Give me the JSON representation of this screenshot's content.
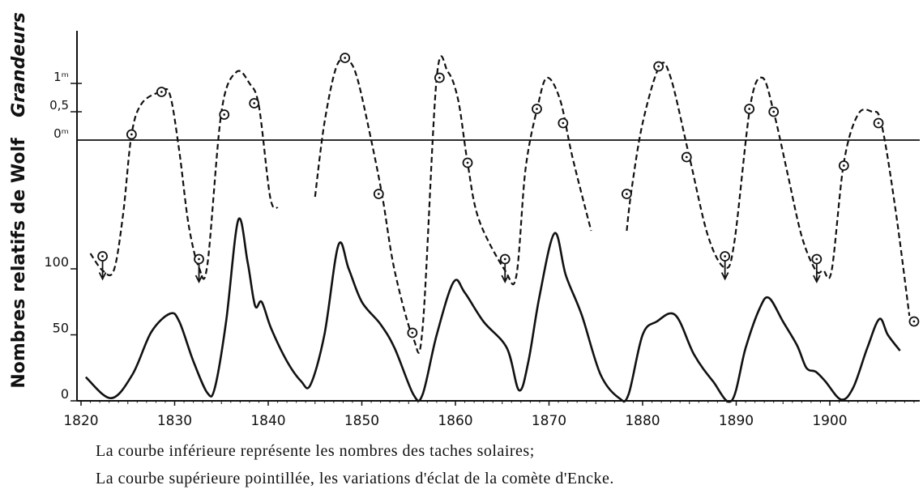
{
  "chart_data": {
    "type": "line",
    "xlim": [
      1813,
      1912
    ],
    "x_ticks": [
      "1820",
      "1830",
      "1840",
      "1850",
      "1860",
      "1870",
      "1880",
      "1890",
      "1900"
    ],
    "lower": {
      "ylabel": "Nombres relatifs de Wolf",
      "ylim": [
        0,
        140
      ],
      "y_ticks": [
        {
          "value": 0,
          "label": "0"
        },
        {
          "value": 50,
          "label": "50"
        },
        {
          "value": 100,
          "label": "100"
        }
      ],
      "series": [
        {
          "style": "solid",
          "points": [
            [
              1820.5,
              18
            ],
            [
              1823.2,
              2
            ],
            [
              1825.5,
              20
            ],
            [
              1827.5,
              52
            ],
            [
              1829.5,
              66
            ],
            [
              1830.5,
              60
            ],
            [
              1832,
              30
            ],
            [
              1833.5,
              6
            ],
            [
              1834.3,
              10
            ],
            [
              1835.5,
              60
            ],
            [
              1836.8,
              137
            ],
            [
              1837.8,
              105
            ],
            [
              1838.6,
              72
            ],
            [
              1839.3,
              75
            ],
            [
              1840.3,
              55
            ],
            [
              1842,
              30
            ],
            [
              1843.5,
              15
            ],
            [
              1844.5,
              12
            ],
            [
              1846,
              50
            ],
            [
              1847.5,
              118
            ],
            [
              1848.6,
              100
            ],
            [
              1850,
              75
            ],
            [
              1852,
              58
            ],
            [
              1853.5,
              40
            ],
            [
              1855.5,
              5
            ],
            [
              1856.5,
              5
            ],
            [
              1858,
              50
            ],
            [
              1859.8,
              90
            ],
            [
              1861,
              82
            ],
            [
              1863,
              60
            ],
            [
              1865.5,
              40
            ],
            [
              1866.8,
              8
            ],
            [
              1867.8,
              30
            ],
            [
              1869,
              80
            ],
            [
              1870.6,
              127
            ],
            [
              1871.8,
              95
            ],
            [
              1873.5,
              65
            ],
            [
              1875.5,
              20
            ],
            [
              1877.5,
              2
            ],
            [
              1878.5,
              5
            ],
            [
              1880,
              50
            ],
            [
              1881.5,
              60
            ],
            [
              1883.5,
              65
            ],
            [
              1885.5,
              35
            ],
            [
              1887.5,
              15
            ],
            [
              1889.5,
              0
            ],
            [
              1891,
              40
            ],
            [
              1892.5,
              70
            ],
            [
              1893.5,
              78
            ],
            [
              1895,
              60
            ],
            [
              1896.5,
              42
            ],
            [
              1897.5,
              25
            ],
            [
              1898.5,
              22
            ],
            [
              1899.5,
              15
            ],
            [
              1901.2,
              1
            ],
            [
              1902.5,
              10
            ],
            [
              1904,
              40
            ],
            [
              1905.3,
              62
            ],
            [
              1906.2,
              50
            ],
            [
              1907.5,
              38
            ]
          ]
        }
      ]
    },
    "upper": {
      "ylabel": "Grandeurs",
      "y_ticks": [
        {
          "value": 1,
          "label": "1ᵐ"
        },
        {
          "value": 0.5,
          "label": "0,5"
        },
        {
          "value": 0,
          "label": "0ᵐ"
        }
      ],
      "series": [
        {
          "style": "dashed",
          "marker": "circled-dot",
          "segments": [
            [
              [
                1821.0,
                -2.0
              ],
              [
                1822.3,
                -2.3
              ],
              [
                1823.5,
                -2.3
              ],
              [
                1824.5,
                -1.3
              ],
              [
                1825.4,
                0.1
              ],
              [
                1826.5,
                0.65
              ],
              [
                1828.5,
                0.85
              ],
              [
                1829.5,
                0.8
              ],
              [
                1830.5,
                -0.2
              ],
              [
                1831.5,
                -1.5
              ],
              [
                1832.6,
                -2.25
              ],
              [
                1833.5,
                -2.2
              ],
              [
                1835,
                0.5
              ],
              [
                1836.6,
                1.2
              ],
              [
                1838,
                1.0
              ],
              [
                1839,
                0.6
              ],
              [
                1840.2,
                -1.0
              ],
              [
                1841,
                -1.2
              ]
            ],
            [
              [
                1845,
                -1.0
              ],
              [
                1846,
                0.3
              ],
              [
                1847.3,
                1.3
              ],
              [
                1848.5,
                1.4
              ],
              [
                1849.5,
                1.1
              ],
              [
                1851,
                0
              ],
              [
                1852.2,
                -1.0
              ],
              [
                1853.5,
                -2.3
              ],
              [
                1855.5,
                -3.5
              ],
              [
                1856.5,
                -3.3
              ],
              [
                1858,
                1.1
              ],
              [
                1859.2,
                1.2
              ],
              [
                1860.3,
                0.7
              ],
              [
                1861.3,
                -0.4
              ],
              [
                1862.5,
                -1.4
              ],
              [
                1865.3,
                -2.3
              ],
              [
                1866.5,
                -2.4
              ],
              [
                1867.5,
                -0.5
              ],
              [
                1868.8,
                0.6
              ],
              [
                1869.8,
                1.1
              ],
              [
                1871.2,
                0.7
              ],
              [
                1872.5,
                -0.3
              ],
              [
                1874.5,
                -1.6
              ]
            ],
            [
              [
                1878.3,
                -1.6
              ],
              [
                1878.8,
                -0.9
              ],
              [
                1880,
                0.3
              ],
              [
                1881.8,
                1.3
              ],
              [
                1883,
                1.1
              ],
              [
                1885,
                -0.3
              ],
              [
                1887,
                -1.7
              ],
              [
                1888.8,
                -2.25
              ],
              [
                1889.8,
                -1.8
              ],
              [
                1891.5,
                0.6
              ],
              [
                1892.8,
                1.1
              ],
              [
                1894,
                0.5
              ],
              [
                1895.5,
                -0.6
              ],
              [
                1897,
                -1.7
              ],
              [
                1898.5,
                -2.3
              ],
              [
                1899.3,
                -2.3
              ],
              [
                1900.2,
                -2.3
              ],
              [
                1901.5,
                -0.4
              ],
              [
                1903,
                0.45
              ],
              [
                1904.5,
                0.5
              ],
              [
                1905.5,
                0.3
              ],
              [
                1907,
                -1.2
              ],
              [
                1908.5,
                -3.1
              ]
            ]
          ],
          "markers": [
            [
              1822.3,
              -2.05
            ],
            [
              1825.4,
              0.1
            ],
            [
              1828.6,
              0.85
            ],
            [
              1832.6,
              -2.1
            ],
            [
              1835.3,
              0.45
            ],
            [
              1838.5,
              0.65
            ],
            [
              1848.2,
              1.45
            ],
            [
              1851.8,
              -0.95
            ],
            [
              1855.4,
              -3.4
            ],
            [
              1858.3,
              1.1
            ],
            [
              1861.3,
              -0.4
            ],
            [
              1865.3,
              -2.1
            ],
            [
              1868.7,
              0.55
            ],
            [
              1871.5,
              0.3
            ],
            [
              1878.3,
              -0.95
            ],
            [
              1881.7,
              1.3
            ],
            [
              1884.7,
              -0.3
            ],
            [
              1888.8,
              -2.05
            ],
            [
              1891.4,
              0.55
            ],
            [
              1894,
              0.5
            ],
            [
              1898.6,
              -2.1
            ],
            [
              1901.5,
              -0.45
            ],
            [
              1905.2,
              0.3
            ],
            [
              1909,
              -3.2
            ]
          ],
          "arrows_at": [
            1822.3,
            1832.6,
            1865.3,
            1888.8,
            1898.6
          ]
        }
      ]
    }
  },
  "caption": {
    "line1": "La courbe inférieure représente les nombres des taches solaires;",
    "line2": "La courbe supérieure pointillée, les variations d'éclat de la comète d'Encke."
  }
}
